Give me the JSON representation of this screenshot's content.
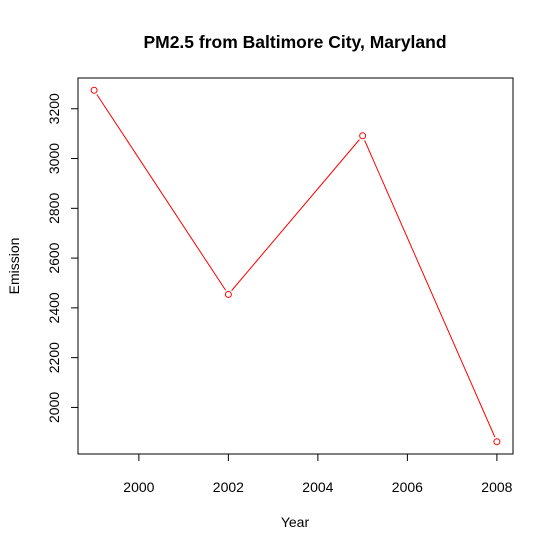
{
  "chart_data": {
    "type": "line",
    "title": "PM2.5 from Baltimore City, Maryland",
    "xlabel": "Year",
    "ylabel": "Emission",
    "x": [
      1999,
      2002,
      2005,
      2008
    ],
    "series": [
      {
        "values": [
          3274.18,
          2453.92,
          3091.35,
          1862.28
        ],
        "color": "#ff0000",
        "marker": "open-circle"
      }
    ],
    "xlim": [
      1998.64,
      2008.36
    ],
    "ylim": [
      1812.85,
      3323.61
    ],
    "xticks": [
      2000,
      2002,
      2004,
      2006,
      2008
    ],
    "yticks": [
      2000,
      2200,
      2400,
      2600,
      2800,
      3000,
      3200
    ],
    "grid": false,
    "legend": "none",
    "axis_color": "#000000"
  }
}
